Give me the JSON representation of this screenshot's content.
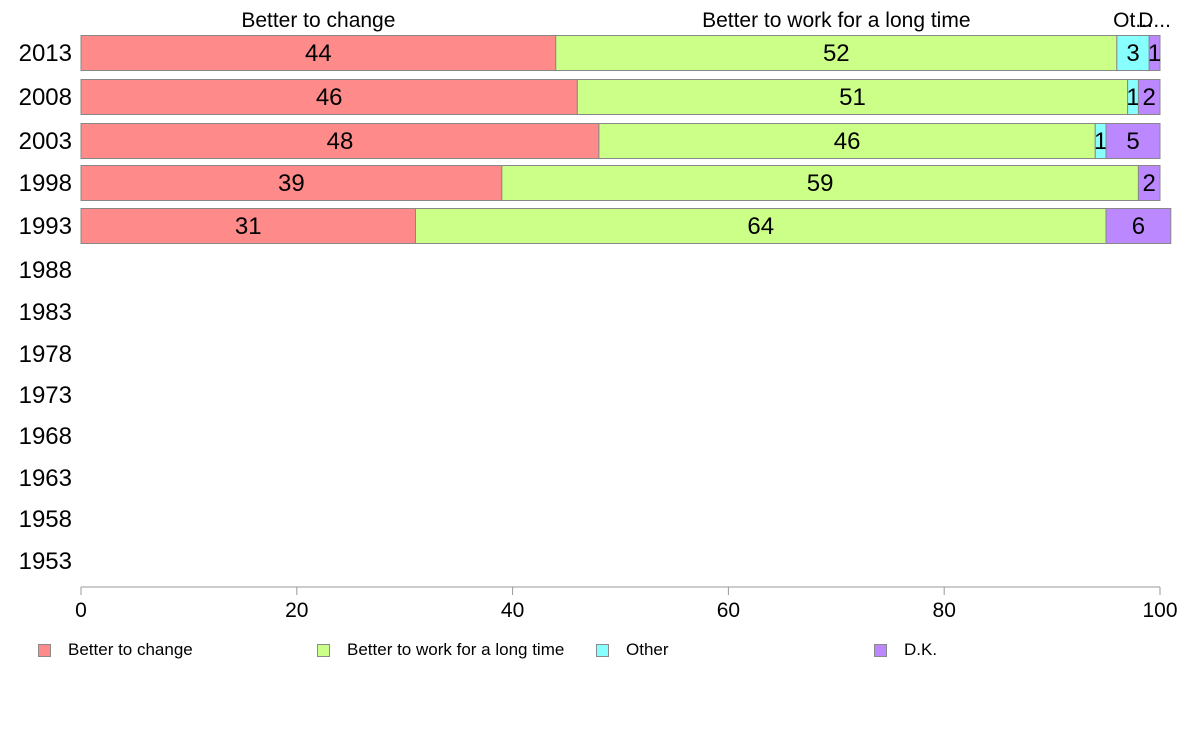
{
  "chart_data": {
    "type": "bar",
    "orientation": "horizontal",
    "stacked": true,
    "categories": [
      "2013",
      "2008",
      "2003",
      "1998",
      "1993",
      "1988",
      "1983",
      "1978",
      "1973",
      "1968",
      "1963",
      "1958",
      "1953"
    ],
    "series": [
      {
        "name": "Better to change",
        "color": "#ff8a8a",
        "values": [
          44,
          46,
          48,
          39,
          31,
          null,
          null,
          null,
          null,
          null,
          null,
          null,
          null
        ]
      },
      {
        "name": "Better to work for a long time",
        "color": "#ccff88",
        "values": [
          52,
          51,
          46,
          59,
          64,
          null,
          null,
          null,
          null,
          null,
          null,
          null,
          null
        ]
      },
      {
        "name": "Other",
        "color": "#88ffff",
        "values": [
          3,
          1,
          1,
          0,
          0,
          null,
          null,
          null,
          null,
          null,
          null,
          null,
          null
        ]
      },
      {
        "name": "D.K.",
        "color": "#bb88ff",
        "values": [
          1,
          2,
          5,
          2,
          6,
          null,
          null,
          null,
          null,
          null,
          null,
          null,
          null
        ]
      }
    ],
    "top_labels": [
      "Better to change",
      "Better to work for a long time",
      "Ot...",
      "D..."
    ],
    "xlim": [
      0,
      100
    ],
    "xticks": [
      0,
      20,
      40,
      60,
      80,
      100
    ],
    "xlabel": "",
    "ylabel": "",
    "title": "",
    "grid": false,
    "legend_position": "bottom"
  }
}
